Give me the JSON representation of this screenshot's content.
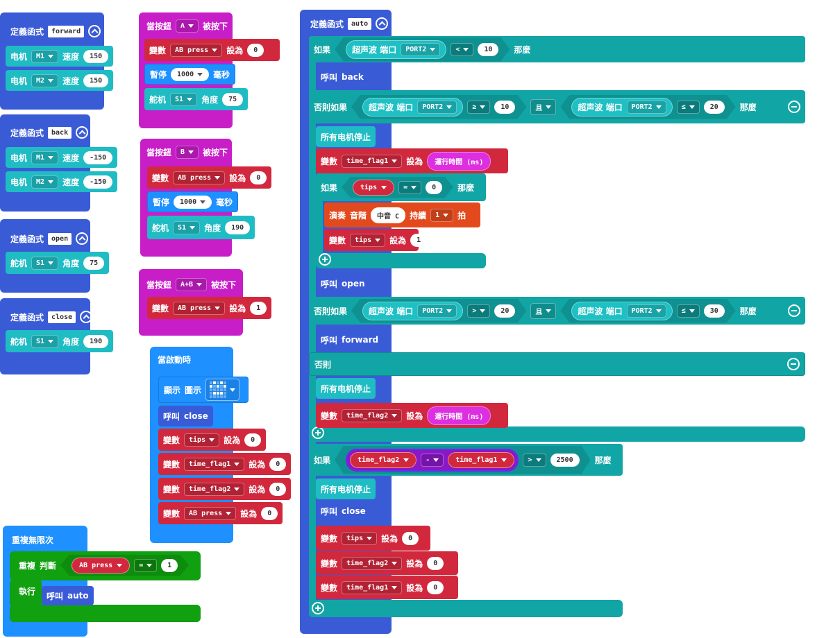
{
  "stacks": [
    {
      "rows": [
        [
          "定義函式",
          "forward"
        ],
        [
          "电机",
          "M1",
          "速度",
          "150"
        ],
        [
          "电机",
          "M2",
          "速度",
          "150"
        ]
      ]
    },
    {
      "rows": [
        [
          "定義函式",
          "back"
        ],
        [
          "电机",
          "M1",
          "速度",
          "-150"
        ],
        [
          "电机",
          "M2",
          "速度",
          "-150"
        ]
      ]
    },
    {
      "rows": [
        [
          "定義函式",
          "open"
        ],
        [
          "舵机",
          "S1",
          "角度",
          "75"
        ]
      ]
    },
    {
      "rows": [
        [
          "定義函式",
          "close"
        ],
        [
          "舵机",
          "S1",
          "角度",
          "190"
        ]
      ]
    },
    {
      "rows": [
        [
          "當按鈕",
          "A",
          "被按下"
        ],
        [
          "變數",
          "AB press",
          "設為",
          "0"
        ],
        [
          "暫停",
          "1000",
          "毫秒"
        ],
        [
          "舵机",
          "S1",
          "角度",
          "75"
        ]
      ]
    },
    {
      "rows": [
        [
          "當按鈕",
          "B",
          "被按下"
        ],
        [
          "變數",
          "AB press",
          "設為",
          "0"
        ],
        [
          "暫停",
          "1000",
          "毫秒"
        ],
        [
          "舵机",
          "S1",
          "角度",
          "190"
        ]
      ]
    },
    {
      "rows": [
        [
          "當按鈕",
          "A+B",
          "被按下"
        ],
        [
          "變數",
          "AB press",
          "設為",
          "1"
        ]
      ]
    },
    {
      "rows": [
        [
          "當啟動時"
        ],
        [
          "顯示",
          "圖示"
        ],
        [
          "呼叫",
          "close"
        ],
        [
          "變數",
          "tips",
          "設為",
          "0"
        ],
        [
          "變數",
          "time_flag1",
          "設為",
          "0"
        ],
        [
          "變數",
          "time_flag2",
          "設為",
          "0"
        ],
        [
          "變數",
          "AB press",
          "設為",
          "0"
        ]
      ]
    },
    {
      "rows": [
        [
          "重複無限次"
        ],
        [
          "重複",
          "判斷",
          "AB press",
          "=",
          "1"
        ],
        [
          "執行"
        ],
        [
          "呼叫",
          "auto"
        ]
      ]
    },
    {
      "rows": [
        [
          "定義函式",
          "auto"
        ],
        [
          "如果",
          "超声波 端口",
          "PORT2",
          "<",
          "10",
          "那麼"
        ],
        [
          "呼叫",
          "back"
        ],
        [
          "否則如果",
          "超声波 端口",
          "PORT2",
          "≥",
          "10",
          "且",
          "超声波 端口",
          "PORT2",
          "≤",
          "20",
          "那麼"
        ],
        [
          "所有电机停止"
        ],
        [
          "變數",
          "time_flag1",
          "設為",
          "運行時間 (ms)"
        ],
        [
          "如果",
          "tips",
          "=",
          "0",
          "那麼"
        ],
        [
          "演奏",
          "音階",
          "中音 C",
          "持續",
          "1",
          "拍"
        ],
        [
          "變數",
          "tips",
          "設為",
          "1"
        ],
        [
          "呼叫",
          "open"
        ],
        [
          "否則如果",
          "超声波 端口",
          "PORT2",
          ">",
          "20",
          "且",
          "超声波 端口",
          "PORT2",
          "≤",
          "30",
          "那麼"
        ],
        [
          "呼叫",
          "forward"
        ],
        [
          "否則"
        ],
        [
          "所有电机停止"
        ],
        [
          "變數",
          "time_flag2",
          "設為",
          "運行時間 (ms)"
        ],
        [
          "如果",
          "time_flag2",
          "-",
          "time_flag1",
          ">",
          "2500",
          "那麼"
        ],
        [
          "所有电机停止"
        ],
        [
          "呼叫",
          "close"
        ],
        [
          "變數",
          "tips",
          "設為",
          "0"
        ],
        [
          "變數",
          "time_flag2",
          "設為",
          "0"
        ],
        [
          "變數",
          "time_flag1",
          "設為",
          "0"
        ]
      ]
    }
  ]
}
